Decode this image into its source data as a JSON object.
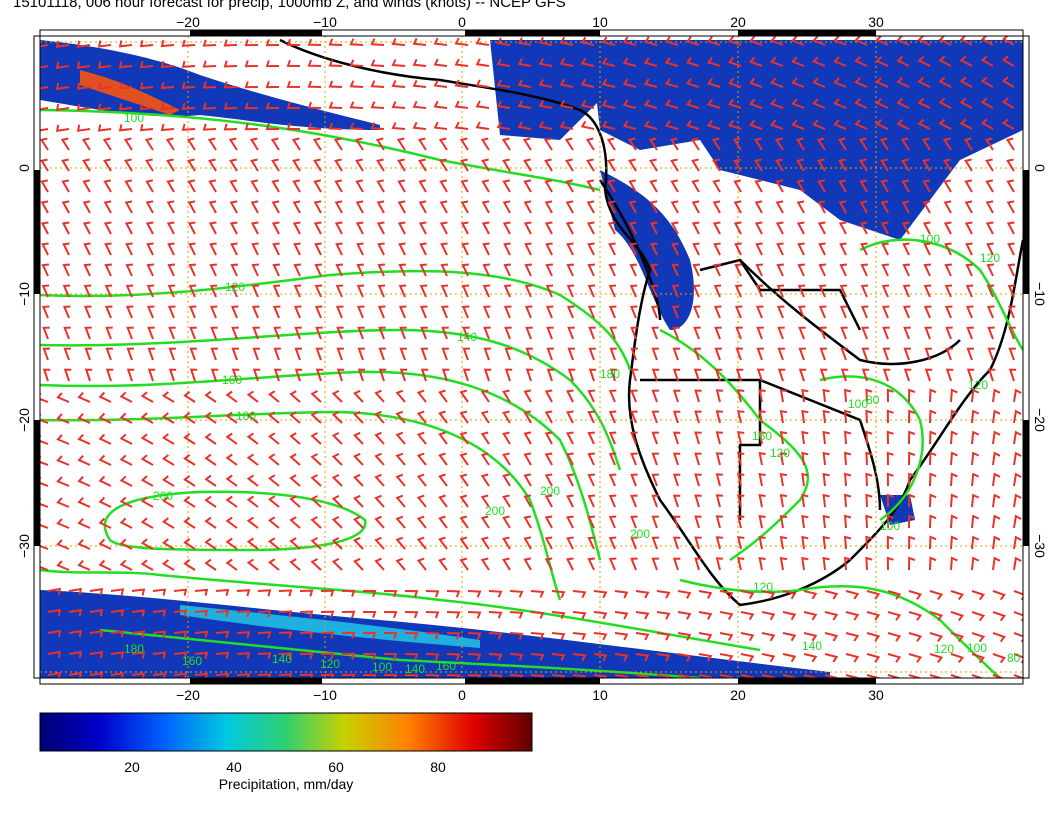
{
  "title": "15101118, 006 hour forecast for precip, 1000mb Z, and winds (knots) -- NCEP GFS",
  "map": {
    "lon_range": [
      -30,
      40
    ],
    "lat_range": [
      -40,
      10
    ],
    "top_lon_ticks": [
      "−20",
      "−10",
      "0",
      "10",
      "20",
      "30"
    ],
    "bottom_lon_ticks": [
      "−20",
      "−10",
      "0",
      "10",
      "20",
      "30"
    ],
    "left_lat_ticks": [
      "0",
      "−10",
      "−20",
      "−30"
    ],
    "right_lat_ticks": [
      "0",
      "−10",
      "−20",
      "−30"
    ],
    "contour_labels": [
      "100",
      "120",
      "140",
      "160",
      "180",
      "200",
      "200",
      "180",
      "160",
      "140",
      "120",
      "100",
      "200",
      "200",
      "180",
      "160",
      "140",
      "120",
      "100",
      "100",
      "80",
      "120",
      "100",
      "120",
      "160",
      "120",
      "140",
      "120",
      "100",
      "80"
    ],
    "colors": {
      "wind_barbs": "#e8322a",
      "contours": "#22dd22",
      "coastline": "#000000",
      "grid": "#e0a000",
      "precip_low": "#000080",
      "precip_mid": "#00c0c0",
      "precip_high": "#c00000"
    }
  },
  "colorbar": {
    "title": "Precipitation, mm/day",
    "ticks": [
      "20",
      "40",
      "60",
      "80"
    ],
    "range": [
      0,
      100
    ]
  }
}
